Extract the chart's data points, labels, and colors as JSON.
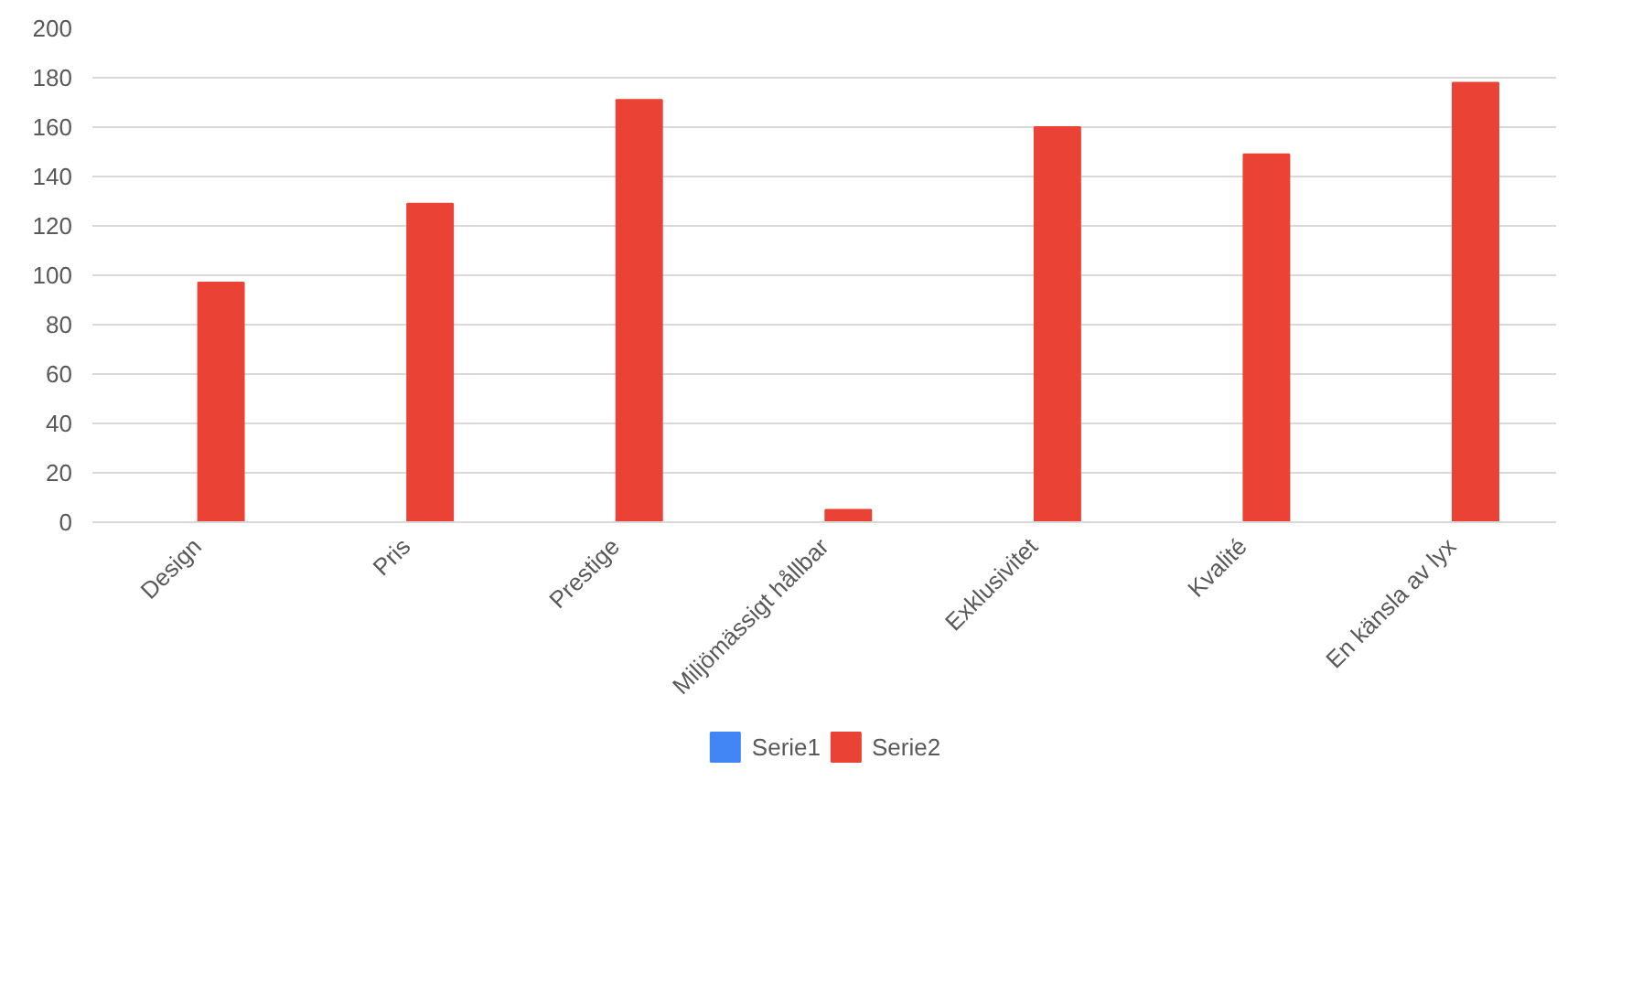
{
  "chart_data": {
    "type": "bar",
    "categories": [
      "Design",
      "Pris",
      "Prestige",
      "Miljömässigt hållbar",
      "Exklusivitet",
      "Kvalité",
      "En känsla av lyx"
    ],
    "series": [
      {
        "name": "Serie1",
        "color": "#4285f4",
        "values": [
          null,
          null,
          null,
          null,
          null,
          null,
          null
        ]
      },
      {
        "name": "Serie2",
        "color": "#ea4335",
        "values": [
          97,
          129,
          171,
          5,
          160,
          149,
          178
        ]
      }
    ],
    "ylim": [
      0,
      200
    ],
    "yticks": [
      0,
      20,
      40,
      60,
      80,
      100,
      120,
      140,
      160,
      180,
      200
    ],
    "grid": "y",
    "legend": "bottom"
  }
}
